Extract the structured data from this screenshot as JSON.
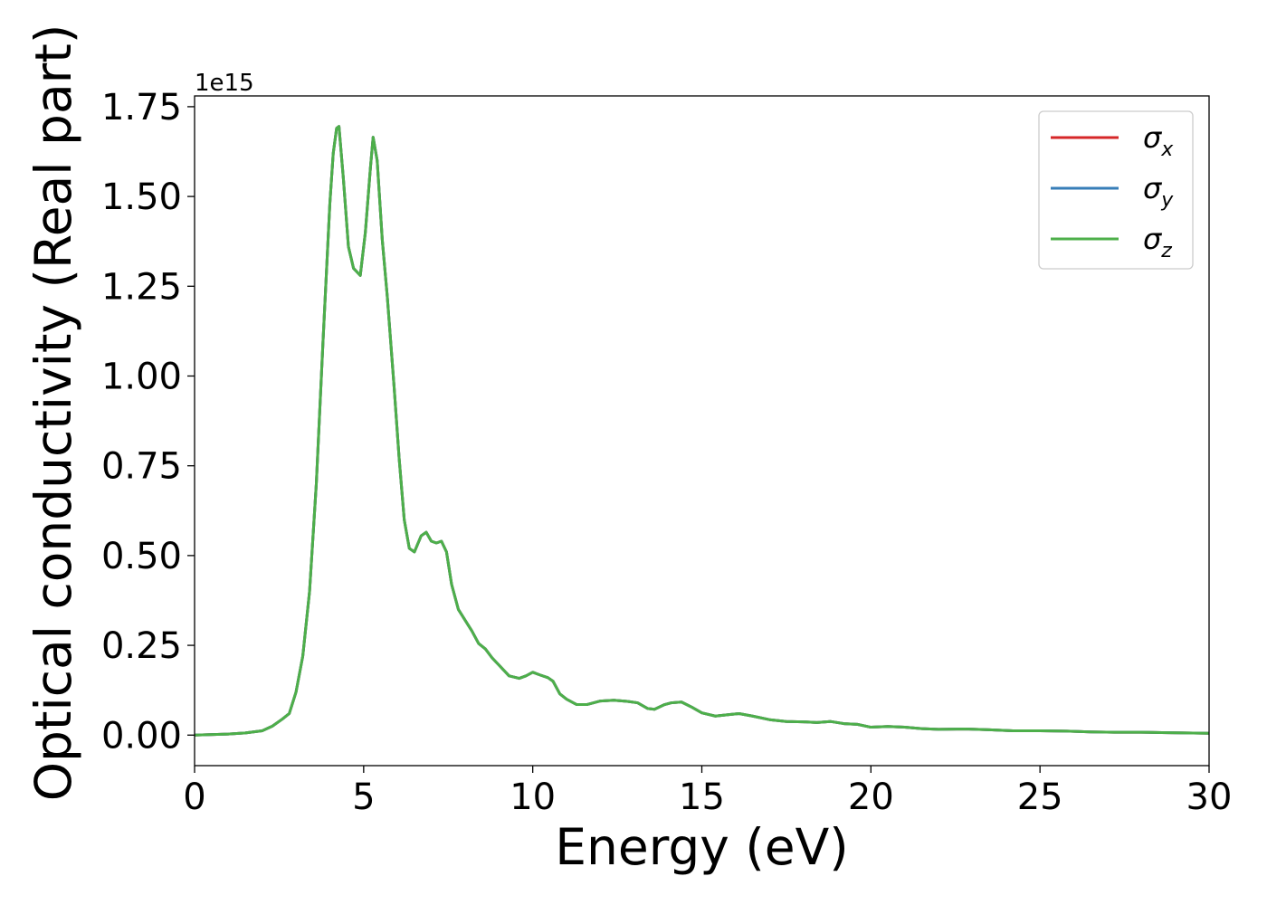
{
  "chart_data": {
    "type": "line",
    "xlabel": "Energy (eV)",
    "ylabel": "Optical conductivity (Real part)",
    "y_offset_label": "1e15",
    "xlim": [
      0,
      30
    ],
    "ylim": [
      -0.085,
      1.78
    ],
    "x_ticks": [
      0,
      5,
      10,
      15,
      20,
      25,
      30
    ],
    "x_tick_labels": [
      "0",
      "5",
      "10",
      "15",
      "20",
      "25",
      "30"
    ],
    "y_ticks": [
      0.0,
      0.25,
      0.5,
      0.75,
      1.0,
      1.25,
      1.5,
      1.75
    ],
    "y_tick_labels": [
      "0.00",
      "0.25",
      "0.50",
      "0.75",
      "1.00",
      "1.25",
      "1.50",
      "1.75"
    ],
    "grid": false,
    "legend_position": "top-right",
    "series": [
      {
        "name": "σ",
        "subscript": "x",
        "color": "#d62728",
        "curve": "shared"
      },
      {
        "name": "σ",
        "subscript": "y",
        "color": "#377eb8",
        "curve": "shared"
      },
      {
        "name": "σ",
        "subscript": "z",
        "color": "#4daf4a",
        "curve": "shared"
      }
    ],
    "shared_curve": {
      "x": [
        0,
        1,
        1.5,
        2,
        2.3,
        2.6,
        2.8,
        3.0,
        3.2,
        3.4,
        3.6,
        3.8,
        4.0,
        4.1,
        4.2,
        4.27,
        4.4,
        4.55,
        4.7,
        4.9,
        5.05,
        5.2,
        5.28,
        5.4,
        5.55,
        5.7,
        5.9,
        6.05,
        6.2,
        6.35,
        6.5,
        6.7,
        6.85,
        7.0,
        7.15,
        7.3,
        7.45,
        7.6,
        7.8,
        8.0,
        8.2,
        8.4,
        8.6,
        8.8,
        9.0,
        9.3,
        9.6,
        9.8,
        10.0,
        10.2,
        10.45,
        10.6,
        10.8,
        11.0,
        11.3,
        11.6,
        12.0,
        12.4,
        12.8,
        13.1,
        13.4,
        13.6,
        13.9,
        14.1,
        14.4,
        14.7,
        15.0,
        15.4,
        15.8,
        16.1,
        16.5,
        17.0,
        17.5,
        18.0,
        18.4,
        18.8,
        19.2,
        19.6,
        20.0,
        20.5,
        21.0,
        21.5,
        22.0,
        22.8,
        23.5,
        24.2,
        25.0,
        25.8,
        26.5,
        27.2,
        28.0,
        28.6,
        29.3,
        30.0
      ],
      "y": [
        0.0,
        0.003,
        0.006,
        0.012,
        0.025,
        0.045,
        0.06,
        0.12,
        0.22,
        0.4,
        0.7,
        1.1,
        1.48,
        1.62,
        1.69,
        1.695,
        1.55,
        1.36,
        1.3,
        1.28,
        1.4,
        1.58,
        1.665,
        1.6,
        1.38,
        1.22,
        0.97,
        0.77,
        0.6,
        0.52,
        0.51,
        0.555,
        0.565,
        0.54,
        0.535,
        0.54,
        0.51,
        0.42,
        0.35,
        0.32,
        0.29,
        0.255,
        0.24,
        0.215,
        0.195,
        0.165,
        0.158,
        0.165,
        0.175,
        0.168,
        0.16,
        0.15,
        0.115,
        0.1,
        0.085,
        0.085,
        0.095,
        0.097,
        0.094,
        0.09,
        0.074,
        0.072,
        0.085,
        0.09,
        0.092,
        0.078,
        0.062,
        0.053,
        0.057,
        0.06,
        0.053,
        0.043,
        0.038,
        0.037,
        0.035,
        0.038,
        0.032,
        0.03,
        0.022,
        0.024,
        0.022,
        0.018,
        0.016,
        0.017,
        0.015,
        0.012,
        0.012,
        0.011,
        0.009,
        0.008,
        0.008,
        0.007,
        0.006,
        0.005
      ]
    }
  }
}
